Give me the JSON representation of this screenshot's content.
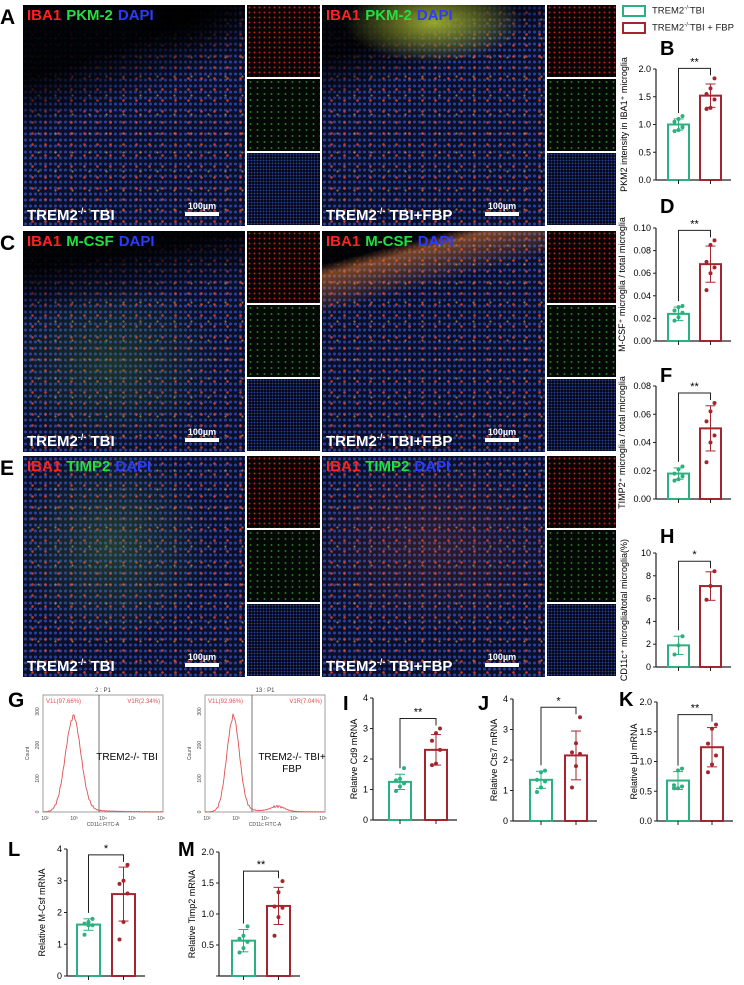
{
  "legend": [
    {
      "label": "TREM2",
      "sup": "-/-",
      "rest": "TBI",
      "color": "#2bb07f"
    },
    {
      "label": "TREM2",
      "sup": "-/-",
      "rest": "TBI + FBP",
      "color": "#a3262f"
    }
  ],
  "micro_rows": [
    {
      "letter": "A",
      "stains": [
        {
          "text": "IBA1",
          "color": "#ff2222"
        },
        {
          "text": "PKM-2",
          "color": "#22e040"
        },
        {
          "text": "DAPI",
          "color": "#2a3cff"
        }
      ],
      "conditions": [
        {
          "main": "TREM2",
          "sup": "-/-",
          "rest": " TBI"
        },
        {
          "main": "TREM2",
          "sup": "-/-",
          "rest": " TBI+FBP"
        }
      ],
      "scale": "100µm"
    },
    {
      "letter": "C",
      "stains": [
        {
          "text": "IBA1",
          "color": "#ff2222"
        },
        {
          "text": "M-CSF",
          "color": "#22e040"
        },
        {
          "text": "DAPI",
          "color": "#2a3cff"
        }
      ],
      "conditions": [
        {
          "main": "TREM2",
          "sup": "-/-",
          "rest": " TBI"
        },
        {
          "main": "TREM2",
          "sup": "-/-",
          "rest": " TBI+FBP"
        }
      ],
      "scale": "100µm"
    },
    {
      "letter": "E",
      "stains": [
        {
          "text": "IBA1",
          "color": "#ff2222"
        },
        {
          "text": "TIMP2",
          "color": "#22e040"
        },
        {
          "text": "DAPI",
          "color": "#2a3cff"
        }
      ],
      "conditions": [
        {
          "main": "TREM2",
          "sup": "-/-",
          "rest": " TBI"
        },
        {
          "main": "TREM2",
          "sup": "-/-",
          "rest": " TBI+FBP"
        }
      ],
      "scale": "100µm"
    }
  ],
  "flow": {
    "letter": "G",
    "ylabel": "Count",
    "xlabel": "CD11c FITC-A",
    "yticks": [
      "0",
      "100",
      "200",
      "300"
    ],
    "xticks": [
      "10²",
      "10³",
      "10⁴",
      "10⁵",
      "10⁶"
    ],
    "color": "#e05050",
    "plots": [
      {
        "title": "2 : P1",
        "left_gate": "V1L(97.66%)",
        "right_gate": "V1R(2.34%)",
        "label": "TREM2-/- TBI"
      },
      {
        "title": "13 : P1",
        "left_gate": "V1L(92.96%)",
        "right_gate": "V1R(7.04%)",
        "label": "TREM2-/- TBI+\nFBP"
      }
    ]
  },
  "chart_data": [
    {
      "id": "B",
      "type": "bar",
      "ylabel": "PKM2 intensity in IBA1⁺ microglia",
      "ylim": [
        0,
        2
      ],
      "yticks": [
        "0.0",
        "0.5",
        "1.0",
        "1.5",
        "2.0"
      ],
      "significance": "**",
      "series": [
        {
          "mean": 1.0,
          "sd": 0.1,
          "points": [
            0.88,
            0.9,
            0.95,
            1.05,
            1.1,
            1.15
          ]
        },
        {
          "mean": 1.52,
          "sd": 0.21,
          "points": [
            1.28,
            1.3,
            1.45,
            1.55,
            1.65,
            1.83
          ]
        }
      ]
    },
    {
      "id": "D",
      "type": "bar",
      "ylabel": "M-CSF⁺ microglia / total microglia",
      "ylim": [
        0,
        0.1
      ],
      "yticks": [
        "0.00",
        "0.02",
        "0.04",
        "0.06",
        "0.08",
        "0.10"
      ],
      "significance": "**",
      "series": [
        {
          "mean": 0.024,
          "sd": 0.006,
          "points": [
            0.018,
            0.021,
            0.025,
            0.027,
            0.03,
            0.031
          ]
        },
        {
          "mean": 0.068,
          "sd": 0.016,
          "points": [
            0.045,
            0.06,
            0.065,
            0.07,
            0.085,
            0.089
          ]
        }
      ]
    },
    {
      "id": "F",
      "type": "bar",
      "ylabel": "TIMP2⁺ microglia / total microglia",
      "ylim": [
        0,
        0.08
      ],
      "yticks": [
        "0.00",
        "0.02",
        "0.04",
        "0.06",
        "0.08"
      ],
      "significance": "**",
      "series": [
        {
          "mean": 0.018,
          "sd": 0.004,
          "points": [
            0.013,
            0.014,
            0.016,
            0.018,
            0.021,
            0.023
          ]
        },
        {
          "mean": 0.05,
          "sd": 0.016,
          "points": [
            0.026,
            0.04,
            0.045,
            0.055,
            0.062,
            0.068
          ]
        }
      ]
    },
    {
      "id": "H",
      "type": "bar",
      "ylabel": "CD11c⁺ microglia/total microglia(%)",
      "ylim": [
        0,
        10
      ],
      "yticks": [
        "0",
        "2",
        "4",
        "6",
        "8",
        "10"
      ],
      "significance": "*",
      "series": [
        {
          "mean": 1.9,
          "sd": 0.8,
          "points": [
            1.1,
            1.9,
            2.7
          ]
        },
        {
          "mean": 7.1,
          "sd": 1.25,
          "points": [
            5.9,
            7.1,
            8.4
          ]
        }
      ]
    },
    {
      "id": "I",
      "type": "bar",
      "ylabel": "Relative Cd9 mRNA",
      "ylim": [
        0,
        4
      ],
      "yticks": [
        "0",
        "1",
        "2",
        "3",
        "4"
      ],
      "significance": "**",
      "series": [
        {
          "mean": 1.25,
          "sd": 0.25,
          "points": [
            0.95,
            1.1,
            1.2,
            1.3,
            1.35,
            1.7
          ]
        },
        {
          "mean": 2.3,
          "sd": 0.5,
          "points": [
            1.8,
            1.85,
            2.3,
            2.6,
            2.85,
            3.0
          ]
        }
      ]
    },
    {
      "id": "J",
      "type": "bar",
      "ylabel": "Relative Cts7 mRNA",
      "ylim": [
        0,
        4
      ],
      "yticks": [
        "0",
        "1",
        "2",
        "3",
        "4"
      ],
      "significance": "*",
      "series": [
        {
          "mean": 1.35,
          "sd": 0.28,
          "points": [
            0.95,
            1.1,
            1.3,
            1.35,
            1.6,
            1.65
          ]
        },
        {
          "mean": 2.15,
          "sd": 0.8,
          "points": [
            1.1,
            1.8,
            2.2,
            2.25,
            2.55,
            3.4
          ]
        }
      ]
    },
    {
      "id": "K",
      "type": "bar",
      "ylabel": "Relative Lpl mRNA",
      "ylim": [
        0,
        2
      ],
      "yticks": [
        "0.0",
        "0.5",
        "1.0",
        "1.5",
        "2.0"
      ],
      "significance": "**",
      "series": [
        {
          "mean": 0.68,
          "sd": 0.15,
          "points": [
            0.55,
            0.55,
            0.58,
            0.6,
            0.85,
            0.88
          ]
        },
        {
          "mean": 1.24,
          "sd": 0.33,
          "points": [
            0.82,
            0.95,
            1.1,
            1.3,
            1.55,
            1.62
          ]
        }
      ]
    },
    {
      "id": "L",
      "type": "bar",
      "ylabel": "Relative M-Csf mRNA",
      "ylim": [
        0,
        4
      ],
      "yticks": [
        "0",
        "1",
        "2",
        "3",
        "4"
      ],
      "significance": "*",
      "series": [
        {
          "mean": 1.62,
          "sd": 0.18,
          "points": [
            1.3,
            1.6,
            1.6,
            1.65,
            1.7,
            1.8
          ]
        },
        {
          "mean": 2.58,
          "sd": 0.85,
          "points": [
            1.15,
            1.7,
            2.6,
            2.9,
            3.0,
            3.5
          ]
        }
      ]
    },
    {
      "id": "M",
      "type": "bar",
      "ylabel": "Relative Timp2 mRNA",
      "ylim": [
        0,
        2
      ],
      "yticks": [
        "",
        "0.5",
        "1.0",
        "1.5",
        "2.0"
      ],
      "significance": "**",
      "series": [
        {
          "mean": 0.57,
          "sd": 0.18,
          "points": [
            0.38,
            0.45,
            0.55,
            0.6,
            0.65,
            0.8
          ]
        },
        {
          "mean": 1.13,
          "sd": 0.3,
          "points": [
            0.65,
            0.95,
            1.1,
            1.12,
            1.35,
            1.53
          ]
        }
      ]
    }
  ]
}
